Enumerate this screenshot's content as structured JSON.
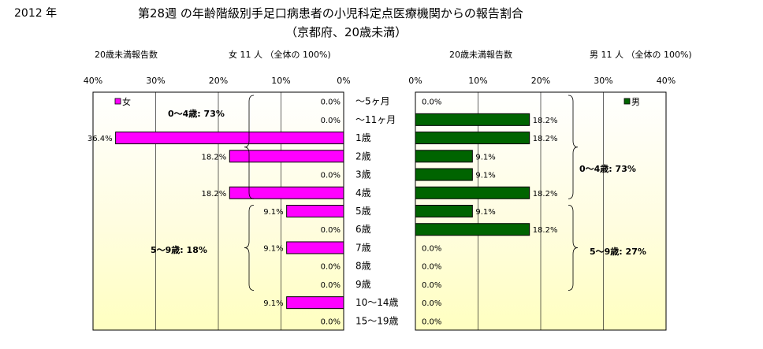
{
  "header": {
    "year": "2012 年",
    "title": "第28週 の年齢階級別手足口病患者の小児科定点医療機関からの報告割合",
    "subtitle": "（京都府、20歳未満）"
  },
  "left": {
    "count_label": "20歳未満報告数",
    "summary": "女 11 人 （全体の 100%)"
  },
  "right": {
    "count_label": "20歳未満報告数",
    "summary": "男 11 人 （全体の 100%)"
  },
  "chart_data": {
    "type": "bar",
    "orientation": "horizontal-butterfly",
    "categories": [
      "～5ヶ月",
      "～11ヶ月",
      "1歳",
      "2歳",
      "3歳",
      "4歳",
      "5歳",
      "6歳",
      "7歳",
      "8歳",
      "9歳",
      "10～14歳",
      "15～19歳"
    ],
    "series": [
      {
        "name": "女",
        "color": "#ff00ff",
        "values": [
          0.0,
          0.0,
          36.4,
          18.2,
          0.0,
          18.2,
          9.1,
          0.0,
          9.1,
          0.0,
          0.0,
          9.1,
          0.0
        ],
        "labels": [
          "0.0%",
          "0.0%",
          "36.4%",
          "18.2%",
          "0.0%",
          "18.2%",
          "9.1%",
          "0.0%",
          "9.1%",
          "0.0%",
          "0.0%",
          "9.1%",
          "0.0%"
        ]
      },
      {
        "name": "男",
        "color": "#006400",
        "values": [
          0.0,
          18.2,
          18.2,
          9.1,
          9.1,
          18.2,
          9.1,
          18.2,
          0.0,
          0.0,
          0.0,
          0.0,
          0.0
        ],
        "labels": [
          "0.0%",
          "18.2%",
          "18.2%",
          "9.1%",
          "9.1%",
          "18.2%",
          "9.1%",
          "18.2%",
          "0.0%",
          "0.0%",
          "0.0%",
          "0.0%",
          "0.0%"
        ]
      }
    ],
    "xlim": [
      0,
      40
    ],
    "ticks": [
      0,
      10,
      20,
      30,
      40
    ],
    "tick_labels": [
      "0%",
      "10%",
      "20%",
      "30%",
      "40%"
    ],
    "annotations": {
      "female": [
        {
          "text": "0～4歳: 73%",
          "from": 0,
          "to": 5
        },
        {
          "text": "5～9歳: 18%",
          "from": 6,
          "to": 10
        }
      ],
      "male": [
        {
          "text": "0～4歳: 73%",
          "from": 0,
          "to": 5
        },
        {
          "text": "5～9歳: 27%",
          "from": 6,
          "to": 10
        }
      ]
    },
    "grid": true,
    "legend": "top-left (女), top-right (男)"
  }
}
